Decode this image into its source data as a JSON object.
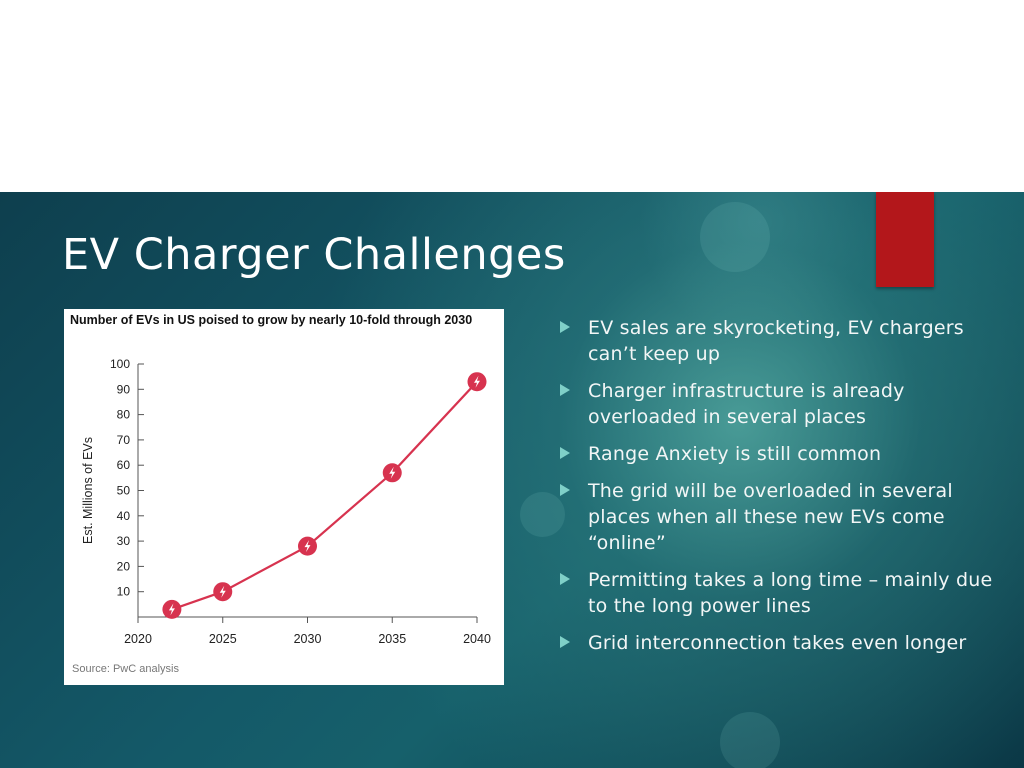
{
  "slide": {
    "title": "EV Charger Challenges",
    "colors": {
      "background": "#145968",
      "accent_bar": "#b3171b",
      "bullet": "#7fd0c8",
      "text": "#ffffff"
    },
    "bullets": [
      "EV sales are skyrocketing, EV chargers can’t keep up",
      "Charger infrastructure is already overloaded in several places",
      "Range Anxiety is still common",
      "The grid will be overloaded in several places when all these new EVs come “online”",
      "Permitting takes a long time – mainly due to the long power lines",
      "Grid interconnection takes even longer"
    ]
  },
  "chart_data": {
    "type": "line",
    "title": "Number of EVs in US poised to grow by nearly 10-fold through 2030",
    "ylabel": "Est. Millions of EVs",
    "xlabel": "",
    "source": "Source: PwC analysis",
    "x_ticks": [
      2020,
      2025,
      2030,
      2035,
      2040
    ],
    "y_ticks": [
      10,
      20,
      30,
      40,
      50,
      60,
      70,
      80,
      90,
      100
    ],
    "xlim": [
      2020,
      2040
    ],
    "ylim": [
      0,
      100
    ],
    "series": [
      {
        "x": [
          2022,
          2025,
          2030,
          2035,
          2040
        ],
        "y": [
          3,
          10,
          28,
          57,
          93
        ],
        "color": "#d7334f",
        "marker": "lightning-bolt-icon"
      }
    ],
    "grid": false
  }
}
